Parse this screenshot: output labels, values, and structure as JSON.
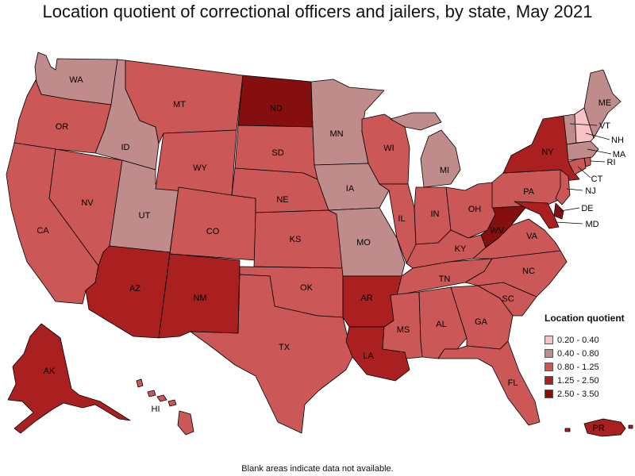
{
  "title": "Location quotient of correctional officers and jailers, by state, May 2021",
  "footnote": "Blank areas indicate data not available.",
  "legend": {
    "title": "Location quotient",
    "items": [
      {
        "label": "0.20 - 0.40",
        "color": "#f7c3c6"
      },
      {
        "label": "0.40 - 0.80",
        "color": "#c08b8b"
      },
      {
        "label": "0.80 - 1.25",
        "color": "#cc5757"
      },
      {
        "label": "1.25 - 2.50",
        "color": "#aa2020"
      },
      {
        "label": "2.50 - 3.50",
        "color": "#850f0f"
      }
    ]
  },
  "states": [
    {
      "abbr": "WA",
      "cls": 1
    },
    {
      "abbr": "OR",
      "cls": 2
    },
    {
      "abbr": "CA",
      "cls": 2
    },
    {
      "abbr": "NV",
      "cls": 2
    },
    {
      "abbr": "ID",
      "cls": 1
    },
    {
      "abbr": "UT",
      "cls": 1
    },
    {
      "abbr": "AZ",
      "cls": 3
    },
    {
      "abbr": "MT",
      "cls": 2
    },
    {
      "abbr": "WY",
      "cls": 2
    },
    {
      "abbr": "CO",
      "cls": 2
    },
    {
      "abbr": "NM",
      "cls": 3
    },
    {
      "abbr": "ND",
      "cls": 4
    },
    {
      "abbr": "SD",
      "cls": 2
    },
    {
      "abbr": "NE",
      "cls": 2
    },
    {
      "abbr": "KS",
      "cls": 2
    },
    {
      "abbr": "OK",
      "cls": 2
    },
    {
      "abbr": "TX",
      "cls": 2
    },
    {
      "abbr": "MN",
      "cls": 1
    },
    {
      "abbr": "IA",
      "cls": 1
    },
    {
      "abbr": "MO",
      "cls": 1
    },
    {
      "abbr": "AR",
      "cls": 3
    },
    {
      "abbr": "LA",
      "cls": 3
    },
    {
      "abbr": "WI",
      "cls": 2
    },
    {
      "abbr": "IL",
      "cls": 2
    },
    {
      "abbr": "MI",
      "cls": 1
    },
    {
      "abbr": "IN",
      "cls": 2
    },
    {
      "abbr": "OH",
      "cls": 2
    },
    {
      "abbr": "KY",
      "cls": 2
    },
    {
      "abbr": "TN",
      "cls": 2
    },
    {
      "abbr": "MS",
      "cls": 2
    },
    {
      "abbr": "AL",
      "cls": 2
    },
    {
      "abbr": "GA",
      "cls": 2
    },
    {
      "abbr": "FL",
      "cls": 2
    },
    {
      "abbr": "SC",
      "cls": 2
    },
    {
      "abbr": "NC",
      "cls": 2
    },
    {
      "abbr": "VA",
      "cls": 2
    },
    {
      "abbr": "WV",
      "cls": 4
    },
    {
      "abbr": "PA",
      "cls": 2
    },
    {
      "abbr": "NY",
      "cls": 3
    },
    {
      "abbr": "VT",
      "cls": 1
    },
    {
      "abbr": "NH",
      "cls": 0
    },
    {
      "abbr": "ME",
      "cls": 1
    },
    {
      "abbr": "MA",
      "cls": 1
    },
    {
      "abbr": "CT",
      "cls": 2
    },
    {
      "abbr": "RI",
      "cls": 2
    },
    {
      "abbr": "NJ",
      "cls": 2
    },
    {
      "abbr": "DE",
      "cls": 4
    },
    {
      "abbr": "MD",
      "cls": 3
    },
    {
      "abbr": "AK",
      "cls": 3
    },
    {
      "abbr": "HI",
      "cls": 2
    },
    {
      "abbr": "PR",
      "cls": 3
    }
  ]
}
